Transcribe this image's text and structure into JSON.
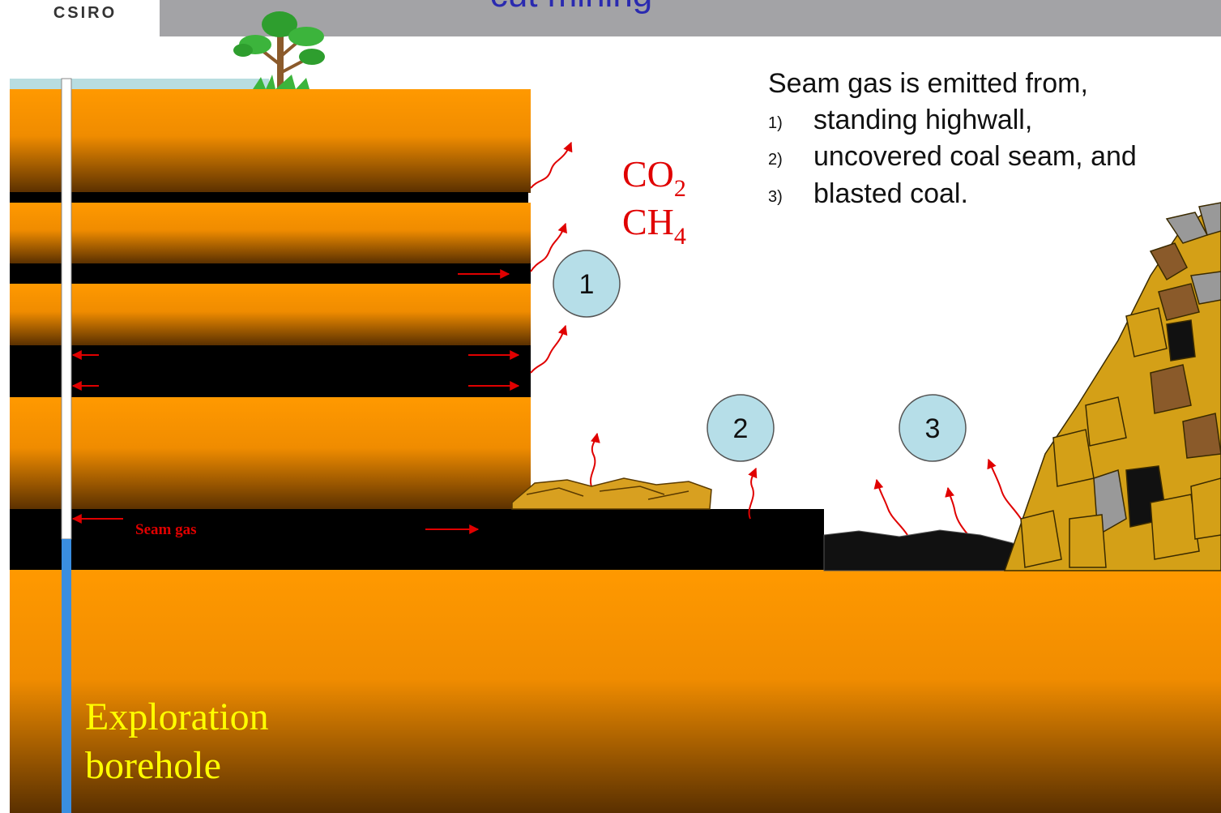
{
  "header": {
    "logo": "CSIRO",
    "title": "cut mining"
  },
  "gases": [
    {
      "base": "CO",
      "sub": "2"
    },
    {
      "base": "CH",
      "sub": "4"
    }
  ],
  "notes": {
    "intro": "Seam gas is emitted from,",
    "items": [
      {
        "number": "1)",
        "text": "standing highwall,"
      },
      {
        "number": "2)",
        "text": "uncovered coal seam, and"
      },
      {
        "number": "3)",
        "text": "blasted coal."
      }
    ]
  },
  "markers": [
    "1",
    "2",
    "3"
  ],
  "seam_label": "Seam gas",
  "borehole_label": [
    "Exploration",
    "borehole"
  ]
}
